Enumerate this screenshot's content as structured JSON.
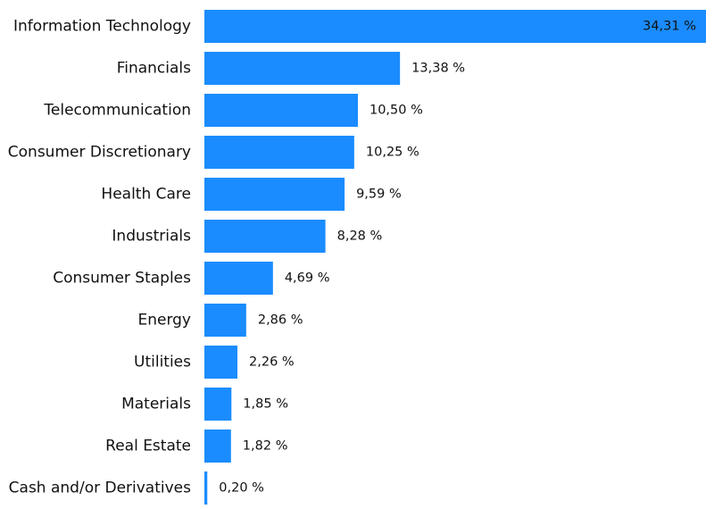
{
  "chart_data": {
    "type": "bar",
    "orientation": "horizontal",
    "title": "",
    "xlabel": "",
    "ylabel": "",
    "categories": [
      "Information Technology",
      "Financials",
      "Telecommunication",
      "Consumer Discretionary",
      "Health Care",
      "Industrials",
      "Consumer Staples",
      "Energy",
      "Utilities",
      "Materials",
      "Real Estate",
      "Cash and/or Derivatives"
    ],
    "values": [
      34.31,
      13.38,
      10.5,
      10.25,
      9.59,
      8.28,
      4.69,
      2.86,
      2.26,
      1.85,
      1.82,
      0.2
    ],
    "value_labels": [
      "34,31 %",
      "13,38 %",
      "10,50 %",
      "10,25 %",
      "9,59 %",
      "8,28 %",
      "4,69 %",
      "2,86 %",
      "2,26 %",
      "1,85 %",
      "1,82 %",
      "0,20 %"
    ],
    "xlim": [
      0,
      34.31
    ],
    "grid": false,
    "legend": "none",
    "bar_color": "#1a8cff"
  }
}
